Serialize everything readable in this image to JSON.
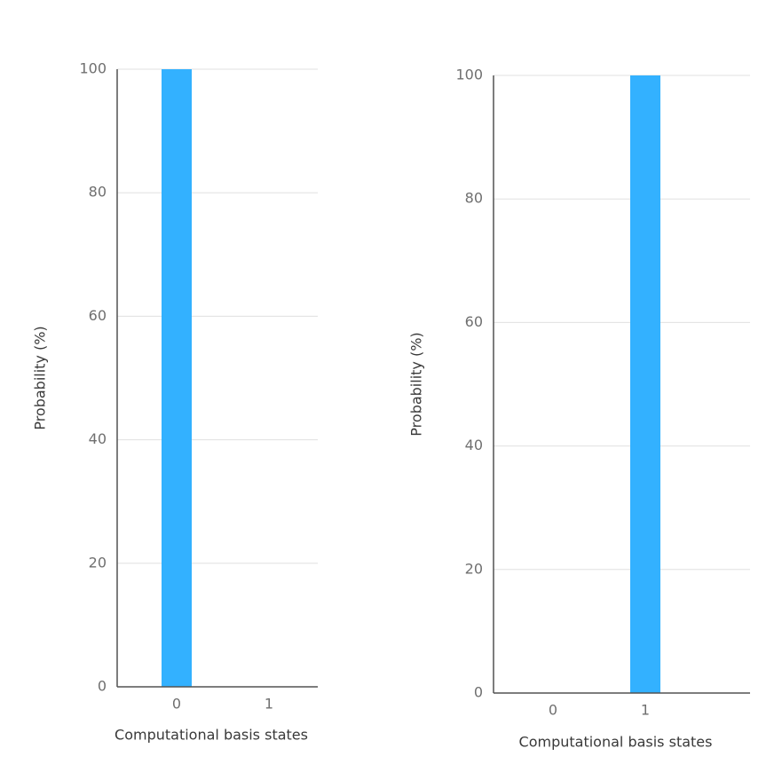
{
  "chart_data": [
    {
      "type": "bar",
      "categories": [
        "0",
        "1"
      ],
      "values": [
        100,
        0
      ],
      "color": "#33b1ff",
      "x_label": "Computational basis states",
      "y_label": "Probability (%)",
      "ylim": [
        0,
        100
      ],
      "yticks": [
        0,
        20,
        40,
        60,
        80,
        100
      ],
      "grid": true
    },
    {
      "type": "bar",
      "categories": [
        "0",
        "1"
      ],
      "values": [
        0,
        100
      ],
      "color": "#33b1ff",
      "x_label": "Computational basis states",
      "y_label": "Probability (%)",
      "ylim": [
        0,
        100
      ],
      "yticks": [
        0,
        20,
        40,
        60,
        80,
        100
      ],
      "grid": true
    }
  ]
}
